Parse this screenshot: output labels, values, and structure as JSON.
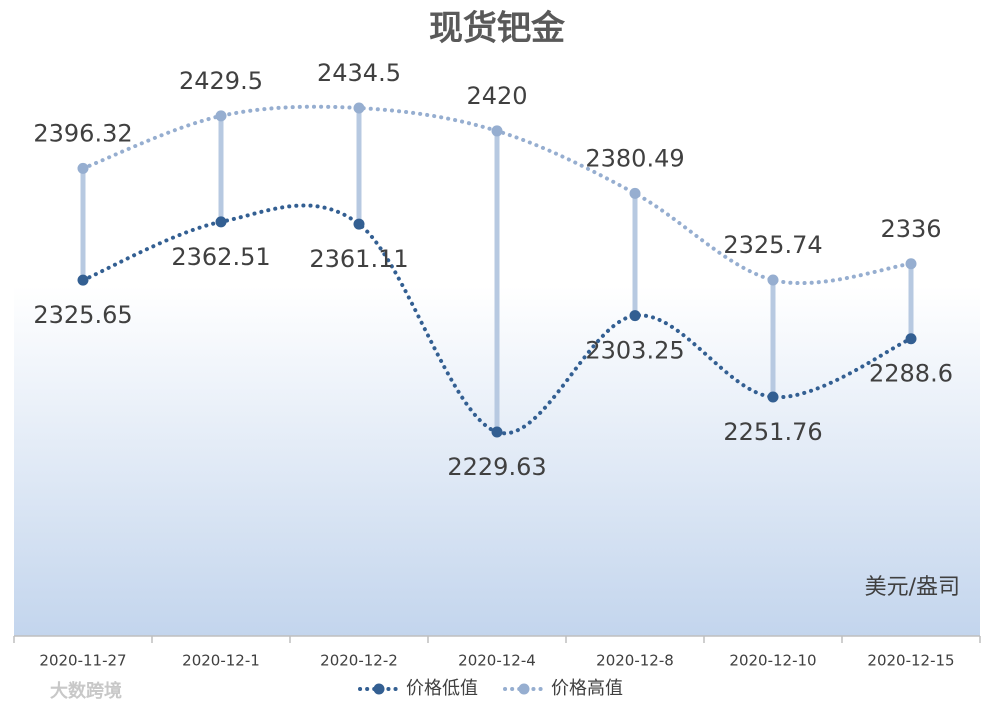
{
  "chart_data": {
    "type": "line",
    "title": "现货钯金",
    "categories": [
      "2020-11-27",
      "2020-12-1",
      "2020-12-2",
      "2020-12-4",
      "2020-12-8",
      "2020-12-10",
      "2020-12-15"
    ],
    "series": [
      {
        "name": "价格低值",
        "color": "#335f92",
        "values": [
          2325.65,
          2362.51,
          2361.11,
          2229.63,
          2303.25,
          2251.76,
          2288.6
        ]
      },
      {
        "name": "价格高值",
        "color": "#96aed0",
        "values": [
          2396.32,
          2429.5,
          2434.5,
          2420,
          2380.49,
          2325.74,
          2336
        ]
      }
    ],
    "unit_label": "美元/盎司",
    "watermark": "大数跨境",
    "high_low_color": "#b7c9e1",
    "smooth": true
  }
}
